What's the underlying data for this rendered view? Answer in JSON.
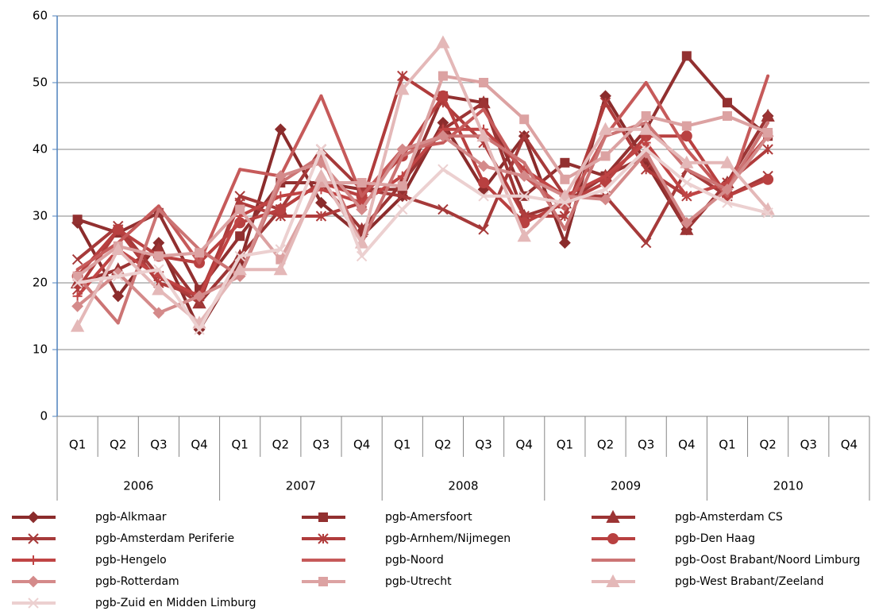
{
  "chart_data": {
    "type": "line",
    "categories": [
      "Q1",
      "Q2",
      "Q3",
      "Q4",
      "Q1",
      "Q2",
      "Q3",
      "Q4",
      "Q1",
      "Q2",
      "Q3",
      "Q4",
      "Q1",
      "Q2",
      "Q3",
      "Q4",
      "Q1",
      "Q2",
      "Q3",
      "Q4"
    ],
    "category_groups": [
      "2006",
      "2007",
      "2008",
      "2009",
      "2010"
    ],
    "ylim": [
      0,
      60
    ],
    "yticks": [
      0,
      10,
      20,
      30,
      40,
      50,
      60
    ],
    "grid": true,
    "legend": "bottom",
    "series": [
      {
        "name": "pgb-Alkmaar",
        "color": "#8b2c2c",
        "marker": "diamond",
        "values": [
          29,
          18,
          26,
          13,
          23,
          43,
          32,
          27,
          33,
          44,
          34,
          42,
          26,
          48,
          38,
          28,
          35,
          45,
          null,
          null
        ]
      },
      {
        "name": "pgb-Amersfoort",
        "color": "#923030",
        "marker": "square",
        "values": [
          29.5,
          27.5,
          30.5,
          19,
          27,
          35,
          35,
          34,
          34,
          48,
          47,
          33,
          38,
          36,
          43,
          54,
          47,
          42,
          null,
          null
        ]
      },
      {
        "name": "pgb-Amsterdam CS",
        "color": "#9c3434",
        "marker": "triangle",
        "values": [
          20,
          22,
          25,
          17,
          24,
          31,
          35,
          28,
          35,
          43,
          47,
          30,
          32,
          36,
          39,
          28,
          35,
          45,
          null,
          null
        ]
      },
      {
        "name": "pgb-Amsterdam Periferie",
        "color": "#a63a3a",
        "marker": "x",
        "values": [
          23.5,
          28.5,
          21,
          17,
          33,
          31,
          40,
          34,
          33,
          31,
          28,
          42,
          33,
          33,
          26,
          37,
          33,
          36,
          null,
          null
        ]
      },
      {
        "name": "pgb-Arnhem/Nijmegen",
        "color": "#b03c3c",
        "marker": "star",
        "values": [
          19,
          28,
          20,
          18,
          32,
          30,
          30,
          32,
          51,
          47,
          41,
          30,
          30,
          47,
          37,
          33,
          35,
          40,
          null,
          null
        ]
      },
      {
        "name": "pgb-Den Haag",
        "color": "#b84040",
        "marker": "circle",
        "values": [
          21,
          28,
          24,
          23,
          29,
          31,
          35,
          33,
          39,
          48,
          35,
          29,
          32,
          35,
          42,
          42,
          33,
          35.5,
          null,
          null
        ]
      },
      {
        "name": "pgb-Hengelo",
        "color": "#c04444",
        "marker": "plus",
        "values": [
          18,
          25,
          21,
          18,
          30,
          33,
          34,
          32,
          36,
          43,
          43,
          37,
          33,
          36,
          41,
          33,
          35,
          42,
          null,
          null
        ]
      },
      {
        "name": "pgb-Noord",
        "color": "#c65a5a",
        "marker": "none",
        "values": [
          22,
          26,
          31.5,
          23,
          37,
          36,
          48,
          33,
          40,
          41,
          46,
          36,
          31,
          42,
          50,
          40,
          33,
          51,
          null,
          null
        ]
      },
      {
        "name": "pgb-Oost Brabant/Noord Limburg",
        "color": "#cc7474",
        "marker": "none",
        "values": [
          21,
          14,
          31,
          25,
          21,
          35,
          39,
          26,
          39,
          42,
          42,
          38,
          28,
          42,
          44,
          37,
          34,
          44,
          null,
          null
        ]
      },
      {
        "name": "pgb-Rotterdam",
        "color": "#d48a8a",
        "marker": "diamond",
        "values": [
          16.5,
          21.5,
          15.5,
          18,
          21,
          36,
          38,
          31,
          40,
          42,
          37.5,
          36,
          33,
          32.5,
          39.5,
          29,
          34,
          42,
          null,
          null
        ]
      },
      {
        "name": "pgb-Utrecht",
        "color": "#dca2a2",
        "marker": "square",
        "values": [
          21,
          25.5,
          24,
          24.5,
          31,
          23.5,
          35,
          35,
          34.5,
          51,
          50,
          44.5,
          35.5,
          39,
          45,
          43.5,
          45,
          42.5,
          null,
          null
        ]
      },
      {
        "name": "pgb-West Brabant/Zeeland",
        "color": "#e4b8b8",
        "marker": "triangle",
        "values": [
          13.5,
          25,
          19,
          14,
          22,
          22,
          36,
          26,
          49,
          56,
          42,
          27,
          33,
          43,
          43,
          38,
          38,
          31,
          null,
          null
        ]
      },
      {
        "name": "pgb-Zuid en Midden Limburg",
        "color": "#ecd0d0",
        "marker": "x",
        "values": [
          20,
          21,
          22,
          13,
          24,
          25,
          40,
          24,
          31,
          37,
          33,
          33,
          32,
          34,
          40,
          35,
          32,
          30.5,
          null,
          null
        ]
      }
    ]
  }
}
